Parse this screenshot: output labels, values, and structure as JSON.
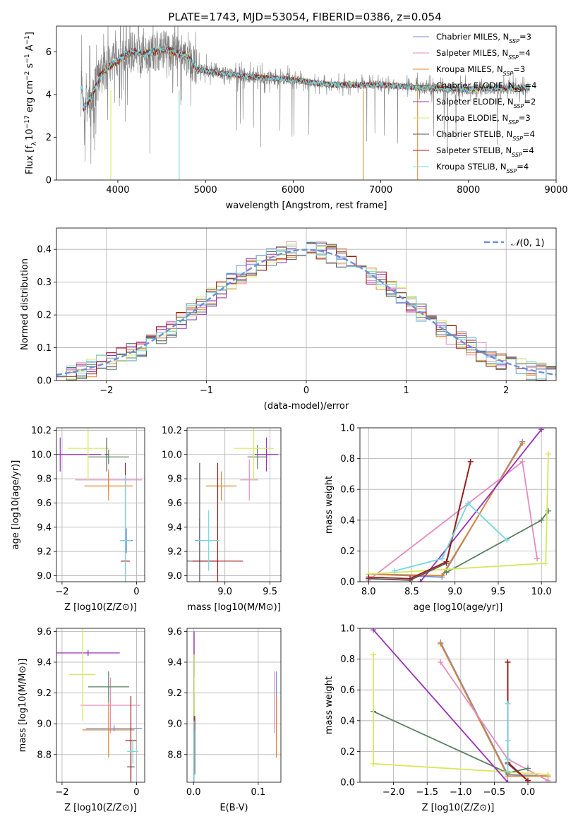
{
  "title": "PLATE=1743, MJD=53054, FIBERID=0386, z=0.054",
  "colors": {
    "Chabrier MILES": "#6f8fd9",
    "Salpeter MILES": "#e58bbf",
    "Kroupa MILES": "#e0842b",
    "Chabrier ELODIE": "#58805e",
    "Salpeter ELODIE": "#9a2fbb",
    "Kroupa ELODIE": "#d5e85a",
    "Chabrier STELIB": "#555555",
    "Salpeter STELIB": "#a11919",
    "Kroupa STELIB": "#74d7de",
    "gaussian": "#6f8fd9",
    "data": "#808080"
  },
  "chart_data": [
    {
      "type": "line",
      "id": "spectrum",
      "title": "PLATE=1743, MJD=53054, FIBERID=0386, z=0.054",
      "xlabel": "wavelength [Angstrom, rest frame]",
      "ylabel": "Flux [f_λ 10^-17 erg cm^-2 s^-1 A^-1]",
      "ylabel_parts": {
        "a": "Flux [f",
        "b": "λ",
        "c": "10",
        "d": "−17",
        "e": " erg cm",
        "f": "−2",
        "g": " s",
        "h": "−1",
        "i": " A",
        "j": "−1",
        "k": "]"
      },
      "xlim": [
        3300,
        9000
      ],
      "ylim": [
        0,
        7.2
      ],
      "xticks": [
        "4000",
        "5000",
        "6000",
        "7000",
        "8000",
        "9000"
      ],
      "yticks": [
        "0",
        "2",
        "4",
        "6"
      ],
      "legend_position": "upper right",
      "legend": [
        {
          "name": "Chabrier MILES",
          "base": "Chabrier MILES, N",
          "sub": "SSP",
          "tail": "=3"
        },
        {
          "name": "Salpeter MILES",
          "base": "Salpeter MILES, N",
          "sub": "SSP",
          "tail": "=4"
        },
        {
          "name": "Kroupa MILES",
          "base": "Kroupa MILES, N",
          "sub": "SSP",
          "tail": "=3"
        },
        {
          "name": "Chabrier ELODIE",
          "base": "Chabrier ELODIE, N",
          "sub": "SSP",
          "tail": "=4"
        },
        {
          "name": "Salpeter ELODIE",
          "base": "Salpeter ELODIE, N",
          "sub": "SSP",
          "tail": "=2"
        },
        {
          "name": "Kroupa ELODIE",
          "base": "Kroupa ELODIE, N",
          "sub": "SSP",
          "tail": "=3"
        },
        {
          "name": "Chabrier STELIB",
          "base": "Chabrier STELIB, N",
          "sub": "SSP",
          "tail": "=4"
        },
        {
          "name": "Salpeter STELIB",
          "base": "Salpeter STELIB, N",
          "sub": "SSP",
          "tail": "=4"
        },
        {
          "name": "Kroupa STELIB",
          "base": "Kroupa STELIB, N",
          "sub": "SSP",
          "tail": "=4"
        }
      ],
      "data_range": [
        3580,
        8700
      ],
      "continuum": [
        [
          3600,
          3.3
        ],
        [
          3700,
          3.9
        ],
        [
          3800,
          4.9
        ],
        [
          3900,
          5.3
        ],
        [
          4000,
          5.6
        ],
        [
          4100,
          5.9
        ],
        [
          4200,
          6.0
        ],
        [
          4300,
          5.9
        ],
        [
          4400,
          6.0
        ],
        [
          4500,
          6.1
        ],
        [
          4600,
          6.05
        ],
        [
          4700,
          5.9
        ],
        [
          4800,
          5.8
        ],
        [
          4900,
          5.2
        ],
        [
          5000,
          5.1
        ],
        [
          5200,
          5.0
        ],
        [
          5400,
          4.9
        ],
        [
          5600,
          4.8
        ],
        [
          5800,
          4.75
        ],
        [
          6000,
          4.7
        ],
        [
          6200,
          4.55
        ],
        [
          6500,
          4.45
        ],
        [
          7000,
          4.45
        ],
        [
          7500,
          4.3
        ],
        [
          8000,
          4.25
        ],
        [
          8500,
          4.3
        ],
        [
          8700,
          4.3
        ]
      ]
    },
    {
      "type": "histogram",
      "id": "residuals",
      "xlabel": "(data-model)/error",
      "ylabel": "Normed distribution",
      "xlim": [
        -2.5,
        2.5
      ],
      "ylim": [
        0,
        0.465
      ],
      "xticks": [
        "−2",
        "−1",
        "0",
        "1",
        "2"
      ],
      "yticks": [
        "0.0",
        "0.1",
        "0.2",
        "0.3",
        "0.4"
      ],
      "legend_position": "upper right",
      "legend": "N(0,1)",
      "legend_parts": {
        "a": "𝒩",
        "b": "(0, 1)"
      },
      "bin_width": 0.1,
      "gaussian": {
        "mean": 0,
        "sigma": 1
      }
    },
    {
      "type": "scatter",
      "id": "age-vs-Z",
      "xlabel": "Z [log10(Z/Z⊙)]",
      "ylabel": "age [log10(age/yr)]",
      "xlim": [
        -2.15,
        0.22
      ],
      "ylim": [
        8.95,
        10.22
      ],
      "xticks": [
        "−2",
        "0"
      ],
      "yticks": [
        "9.0",
        "9.2",
        "9.4",
        "9.6",
        "9.8",
        "10.0",
        "10.2"
      ],
      "points": [
        {
          "model": "Chabrier MILES",
          "x": -0.27,
          "y": 9.29,
          "xerr": 0.17,
          "yerr": 0.1
        },
        {
          "model": "Salpeter MILES",
          "x": -0.75,
          "y": 9.79,
          "xerr": 0.9,
          "yerr": 0.09
        },
        {
          "model": "Kroupa MILES",
          "x": -0.75,
          "y": 9.74,
          "xerr": 0.65,
          "yerr": 0.12
        },
        {
          "model": "Chabrier ELODIE",
          "x": -0.75,
          "y": 9.98,
          "xerr": 0.55,
          "yerr": 0.06
        },
        {
          "model": "Salpeter ELODIE",
          "x": -2.05,
          "y": 10.0,
          "xerr": 1.1,
          "yerr": 0.14
        },
        {
          "model": "Kroupa ELODIE",
          "x": -1.3,
          "y": 10.05,
          "xerr": 0.55,
          "yerr": 0.26
        },
        {
          "model": "Chabrier STELIB",
          "x": -0.8,
          "y": 10.0,
          "xerr": 0.05,
          "yerr": 0.14
        },
        {
          "model": "Salpeter STELIB",
          "x": -0.3,
          "y": 9.12,
          "xerr": 0.12,
          "yerr": 0.81
        },
        {
          "model": "Kroupa STELIB",
          "x": -0.3,
          "y": 9.29,
          "xerr": 0.15,
          "yerr": 0.54
        }
      ]
    },
    {
      "type": "scatter",
      "id": "age-vs-mass",
      "xlabel": "mass [log10(M/M⊙)]",
      "xlim": [
        8.58,
        9.62
      ],
      "ylim": [
        8.95,
        10.22
      ],
      "xticks": [
        "9.0",
        "9.5"
      ],
      "yticks": [
        "9.0",
        "9.2",
        "9.4",
        "9.6",
        "9.8",
        "10.0",
        "10.2"
      ],
      "points": [
        {
          "model": "Chabrier MILES",
          "x": 8.72,
          "y": 9.29,
          "xerr": 0.05,
          "yerr": 0.18
        },
        {
          "model": "Salpeter MILES",
          "x": 9.27,
          "y": 9.79,
          "xerr": 0.1,
          "yerr": 0.17
        },
        {
          "model": "Kroupa MILES",
          "x": 8.96,
          "y": 9.74,
          "xerr": 0.17,
          "yerr": 0.12
        },
        {
          "model": "Chabrier ELODIE",
          "x": 9.36,
          "y": 9.98,
          "xerr": 0.11,
          "yerr": 0.1
        },
        {
          "model": "Salpeter ELODIE",
          "x": 9.46,
          "y": 10.0,
          "xerr": 0.13,
          "yerr": 0.14
        },
        {
          "model": "Kroupa ELODIE",
          "x": 9.32,
          "y": 10.05,
          "xerr": 0.22,
          "yerr": 0.26
        },
        {
          "model": "Chabrier STELIB",
          "x": 8.72,
          "y": 9.12,
          "xerr": 0.2,
          "yerr": 0.81
        },
        {
          "model": "Salpeter STELIB",
          "x": 8.92,
          "y": 9.12,
          "xerr": 0.28,
          "yerr": 0.81
        },
        {
          "model": "Kroupa STELIB",
          "x": 8.82,
          "y": 9.29,
          "xerr": 0.12,
          "yerr": 0.25
        }
      ]
    },
    {
      "type": "line",
      "id": "weight-vs-age",
      "xlabel": "age [log10(age/yr)]",
      "ylabel": "mass weight",
      "xlim": [
        7.9,
        10.17
      ],
      "ylim": [
        0,
        1
      ],
      "xticks": [
        "8.0",
        "8.5",
        "9.0",
        "9.5",
        "10.0"
      ],
      "yticks": [
        "0.0",
        "0.2",
        "0.4",
        "0.6",
        "0.8",
        "1.0"
      ],
      "series": [
        {
          "model": "Chabrier MILES",
          "points": [
            [
              8.0,
              0.05
            ],
            [
              8.85,
              0.03
            ],
            [
              9.78,
              0.91
            ]
          ]
        },
        {
          "model": "Kroupa MILES",
          "points": [
            [
              8.0,
              0.05
            ],
            [
              8.85,
              0.04
            ],
            [
              9.78,
              0.9
            ]
          ]
        },
        {
          "model": "Salpeter MILES",
          "points": [
            [
              8.0,
              0.01
            ],
            [
              9.78,
              0.78
            ],
            [
              9.95,
              0.15
            ]
          ]
        },
        {
          "model": "Chabrier ELODIE",
          "points": [
            [
              8.9,
              0.06
            ],
            [
              10.0,
              0.4
            ],
            [
              10.08,
              0.46
            ]
          ]
        },
        {
          "model": "Kroupa ELODIE",
          "points": [
            [
              8.0,
              0.05
            ],
            [
              10.05,
              0.12
            ],
            [
              10.08,
              0.83
            ]
          ]
        },
        {
          "model": "Salpeter ELODIE",
          "points": [
            [
              8.6,
              0.0
            ],
            [
              10.0,
              0.99
            ]
          ]
        },
        {
          "model": "Chabrier STELIB",
          "points": [
            [
              8.0,
              0.02
            ],
            [
              8.48,
              0.01
            ],
            [
              8.9,
              0.12
            ],
            [
              9.18,
              0.78
            ]
          ]
        },
        {
          "model": "Salpeter STELIB",
          "points": [
            [
              8.0,
              0.03
            ],
            [
              8.48,
              0.02
            ],
            [
              8.9,
              0.13
            ],
            [
              9.18,
              0.78
            ]
          ]
        },
        {
          "model": "Kroupa STELIB",
          "points": [
            [
              8.3,
              0.07
            ],
            [
              8.85,
              0.15
            ],
            [
              9.15,
              0.51
            ],
            [
              9.6,
              0.27
            ]
          ]
        }
      ]
    },
    {
      "type": "scatter",
      "id": "mass-vs-Z",
      "xlabel": "Z [log10(Z/Z⊙)]",
      "ylabel": "mass [log10(M/M⊙)]",
      "xlim": [
        -2.15,
        0.22
      ],
      "ylim": [
        8.62,
        9.62
      ],
      "xticks": [
        "−2",
        "0"
      ],
      "yticks": [
        "8.8",
        "9.0",
        "9.2",
        "9.4",
        "9.6"
      ],
      "points": [
        {
          "model": "Chabrier MILES",
          "x": -0.6,
          "y": 8.97,
          "xerr": 0.75,
          "yerr": 0.02
        },
        {
          "model": "Salpeter MILES",
          "x": -0.7,
          "y": 9.12,
          "xerr": 0.8,
          "yerr": 0.18
        },
        {
          "model": "Kroupa MILES",
          "x": -0.75,
          "y": 8.96,
          "xerr": 0.7,
          "yerr": 0.18
        },
        {
          "model": "Chabrier ELODIE",
          "x": -0.75,
          "y": 9.24,
          "xerr": 0.55,
          "yerr": 0.1
        },
        {
          "model": "Salpeter ELODIE",
          "x": -1.3,
          "y": 9.46,
          "xerr": 0.85,
          "yerr": 0.02
        },
        {
          "model": "Kroupa ELODIE",
          "x": -1.45,
          "y": 9.32,
          "xerr": 0.35,
          "yerr": 0.3
        },
        {
          "model": "Chabrier STELIB",
          "x": -0.15,
          "y": 8.72,
          "xerr": 0.1,
          "yerr": 0.08
        },
        {
          "model": "Salpeter STELIB",
          "x": -0.15,
          "y": 8.89,
          "xerr": 0.15,
          "yerr": 0.29
        },
        {
          "model": "Kroupa STELIB",
          "x": -0.1,
          "y": 8.82,
          "xerr": 0.15,
          "yerr": 0.08
        }
      ]
    },
    {
      "type": "scatter",
      "id": "mass-vs-EBV",
      "xlabel": "E(B-V)",
      "xlim": [
        -0.01,
        0.135
      ],
      "ylim": [
        8.62,
        9.62
      ],
      "xticks": [
        "0.0",
        "0.1"
      ],
      "yticks": [
        "8.8",
        "9.0",
        "9.2",
        "9.4",
        "9.6"
      ],
      "points": [
        {
          "model": "Chabrier MILES",
          "x": 0.128,
          "y": 9.12,
          "yerr": 0.22
        },
        {
          "model": "Salpeter MILES",
          "x": 0.125,
          "y": 9.14,
          "yerr": 0.2
        },
        {
          "model": "Kroupa MILES",
          "x": 0.128,
          "y": 8.98,
          "yerr": 0.2
        },
        {
          "model": "Chabrier ELODIE",
          "x": 0.001,
          "y": 8.95,
          "yerr": 0.25
        },
        {
          "model": "Salpeter ELODIE",
          "x": 0.001,
          "y": 9.45,
          "yerr": 0.15
        },
        {
          "model": "Kroupa ELODIE",
          "x": 0.001,
          "y": 9.25,
          "yerr": 0.2
        },
        {
          "model": "Chabrier STELIB",
          "x": 0.002,
          "y": 8.85,
          "yerr": 0.18
        },
        {
          "model": "Salpeter STELIB",
          "x": 0.002,
          "y": 9.0,
          "yerr": 0.05
        },
        {
          "model": "Kroupa STELIB",
          "x": 0.001,
          "y": 8.82,
          "yerr": 0.2
        }
      ]
    },
    {
      "type": "line",
      "id": "weight-vs-Z",
      "xlabel": "Z [log10(Z/Z⊙)]",
      "ylabel": "mass weight",
      "xlim": [
        -2.5,
        0.42
      ],
      "ylim": [
        0,
        1
      ],
      "xticks": [
        "−2.0",
        "−1.5",
        "−1.0",
        "−0.5",
        "0.0"
      ],
      "yticks": [
        "0.0",
        "0.2",
        "0.4",
        "0.6",
        "0.8",
        "1.0"
      ],
      "series": [
        {
          "model": "Chabrier MILES",
          "points": [
            [
              -1.3,
              0.91
            ],
            [
              -0.3,
              0.05
            ],
            [
              0.3,
              0.04
            ]
          ]
        },
        {
          "model": "Kroupa MILES",
          "points": [
            [
              -1.3,
              0.9
            ],
            [
              -0.3,
              0.04
            ],
            [
              0.3,
              0.04
            ]
          ]
        },
        {
          "model": "Salpeter MILES",
          "points": [
            [
              -1.3,
              0.78
            ],
            [
              -0.3,
              0.15
            ],
            [
              0.3,
              0.01
            ]
          ]
        },
        {
          "model": "Chabrier ELODIE",
          "points": [
            [
              -2.3,
              0.46
            ],
            [
              -0.3,
              0.06
            ],
            [
              0.0,
              0.09
            ]
          ]
        },
        {
          "model": "Kroupa ELODIE",
          "points": [
            [
              -2.3,
              0.83
            ],
            [
              -2.3,
              0.12
            ],
            [
              0.3,
              0.05
            ]
          ]
        },
        {
          "model": "Salpeter ELODIE",
          "points": [
            [
              -2.3,
              0.99
            ],
            [
              -0.3,
              0.0
            ]
          ]
        },
        {
          "model": "Chabrier STELIB",
          "points": [
            [
              -0.3,
              0.78
            ],
            [
              -0.3,
              0.12
            ],
            [
              0.0,
              0.01
            ]
          ]
        },
        {
          "model": "Salpeter STELIB",
          "points": [
            [
              -0.3,
              0.78
            ],
            [
              -0.3,
              0.13
            ],
            [
              0.0,
              0.01
            ]
          ]
        },
        {
          "model": "Kroupa STELIB",
          "points": [
            [
              -0.3,
              0.51
            ],
            [
              -0.3,
              0.27
            ],
            [
              -0.3,
              0.15
            ],
            [
              -0.3,
              0.07
            ]
          ]
        }
      ]
    }
  ]
}
